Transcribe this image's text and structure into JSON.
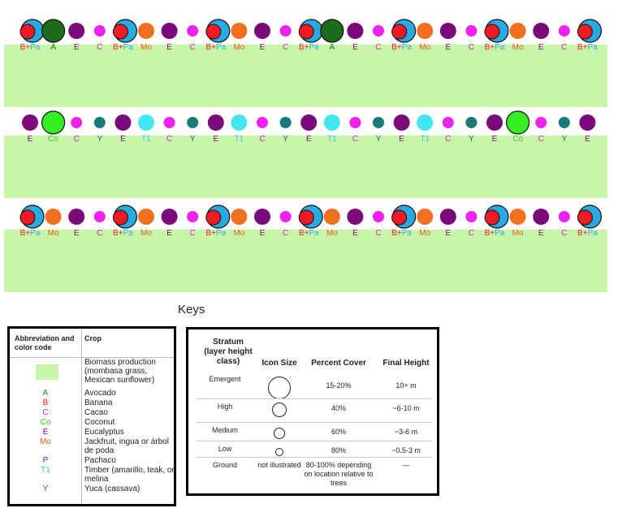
{
  "rows": [
    [
      "B+Pa",
      "A",
      "E",
      "C",
      "B+Pa",
      "Mo",
      "E",
      "C",
      "B+Pa",
      "Mo",
      "E",
      "C",
      "B+Pa",
      "A",
      "E",
      "C",
      "B+Pa",
      "Mo",
      "E",
      "C",
      "B+Pa",
      "Mo",
      "E",
      "C",
      "B+Pa"
    ],
    [
      "E",
      "Co",
      "C",
      "Y",
      "E",
      "T1",
      "C",
      "Y",
      "E",
      "T1",
      "C",
      "Y",
      "E",
      "T1",
      "C",
      "Y",
      "E",
      "T1",
      "C",
      "Y",
      "E",
      "Co",
      "C",
      "Y",
      "E"
    ],
    [
      "B+Pa",
      "Mo",
      "E",
      "C",
      "B+Pa",
      "Mo",
      "E",
      "C",
      "B+Pa",
      "Mo",
      "E",
      "C",
      "B+Pa",
      "Mo",
      "E",
      "C",
      "B+Pa",
      "Mo",
      "E",
      "C",
      "B+Pa",
      "Mo",
      "E",
      "C",
      "B+Pa"
    ]
  ],
  "crop_styles": {
    "A": {
      "fill": "#1e6b1e",
      "r": 14,
      "label": "#1e6b1e"
    },
    "Co": {
      "fill": "#33ee22",
      "r": 14,
      "label": "#33cc22"
    },
    "E": {
      "fill": "#7a0a7a",
      "r": 10,
      "label": "#7a0a7a"
    },
    "C": {
      "fill": "#ee22ee",
      "r": 7,
      "label": "#cc22cc"
    },
    "Mo": {
      "fill": "#f07020",
      "r": 10,
      "label": "#e06010"
    },
    "Y": {
      "fill": "#1a7a7a",
      "r": 7,
      "label": "#1a6a6a"
    },
    "T1": {
      "fill": "#44e6f0",
      "r": 10,
      "label": "#33ccdd"
    },
    "B": {
      "fill": "#ee1b24",
      "label": "#ee1b24"
    },
    "Pa": {
      "fill": "#29abe2",
      "label": "#29abe2"
    }
  },
  "biomass_color": "#c8f5a8",
  "keys_title": "Keys",
  "legend_crops": {
    "header_code": "Abbreviation and color code",
    "header_crop": "Crop",
    "items": [
      {
        "code": "",
        "crop": "Biomass production (mombasa grass, Mexican sunflower)",
        "color": "#c8f5a8"
      },
      {
        "code": "A",
        "crop": "Avocado",
        "color": "#1e8a1e"
      },
      {
        "code": "B",
        "crop": "Banana",
        "color": "#ee1b24"
      },
      {
        "code": "C",
        "crop": "Cacao",
        "color": "#cc22cc"
      },
      {
        "code": "Co",
        "crop": "Coconut",
        "color": "#33cc22"
      },
      {
        "code": "E",
        "crop": "Eucalyptus",
        "color": "#7a0a7a"
      },
      {
        "code": "Mo",
        "crop": "Jackfruit, ingua or árbol de poda",
        "color": "#e06010"
      },
      {
        "code": "P",
        "crop": "Pachaco",
        "color": "#3333cc"
      },
      {
        "code": "T1",
        "crop": "Timber (amarillo, teak, or melina",
        "color": "#33ccdd"
      },
      {
        "code": "Y",
        "crop": "Yuca (cassava)",
        "color": "#1a6a6a"
      }
    ]
  },
  "legend_strata": {
    "headers": [
      "Stratum (layer height class)",
      "Icon Size",
      "Percent Cover",
      "Final Height"
    ],
    "rows": [
      {
        "stratum": "Emergent",
        "icon": "large",
        "cover": "15-20%",
        "height": "10+ m"
      },
      {
        "stratum": "High",
        "icon": "medium-large",
        "cover": "40%",
        "height": "~6-10 m"
      },
      {
        "stratum": "Medium",
        "icon": "medium",
        "cover": "60%",
        "height": "~3-6 m"
      },
      {
        "stratum": "Low",
        "icon": "small",
        "cover": "80%",
        "height": "~0.5-3 m"
      },
      {
        "stratum": "Ground",
        "icon": "not illustrated",
        "cover": "80-100% depending on location relative to trees",
        "height": "—"
      }
    ]
  }
}
